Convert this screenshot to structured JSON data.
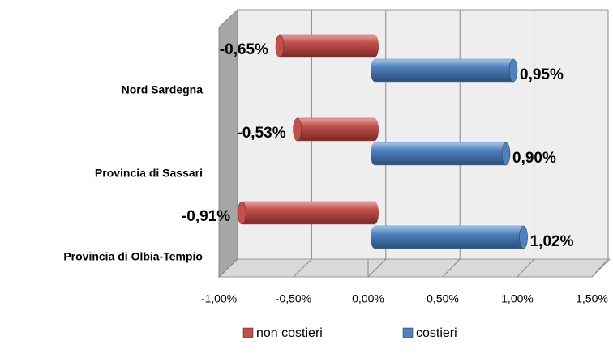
{
  "chart_data": {
    "type": "bar",
    "orientation": "horizontal",
    "categories": [
      "Nord Sardegna",
      "Provincia di Sassari",
      "Provincia di Olbia-Tempio"
    ],
    "series": [
      {
        "name": "non costieri",
        "color": "#c0504d",
        "values": [
          -0.65,
          -0.53,
          -0.91
        ],
        "value_labels": [
          "-0,65%",
          "-0,53%",
          "-0,91%"
        ]
      },
      {
        "name": "costieri",
        "color": "#4f81bd",
        "values": [
          0.95,
          0.9,
          1.02
        ],
        "value_labels": [
          "0,95%",
          "0,90%",
          "1,02%"
        ]
      }
    ],
    "xlim": [
      -1,
      1.5
    ],
    "xticks": [
      {
        "value": -1,
        "label": "-1,00%"
      },
      {
        "value": -0.5,
        "label": "-0,50%"
      },
      {
        "value": 0,
        "label": "0,00%"
      },
      {
        "value": 0.5,
        "label": "0,50%"
      },
      {
        "value": 1,
        "label": "1,00%"
      },
      {
        "value": 1.5,
        "label": "1,50%"
      }
    ],
    "grid": true,
    "legend": "bottom"
  }
}
